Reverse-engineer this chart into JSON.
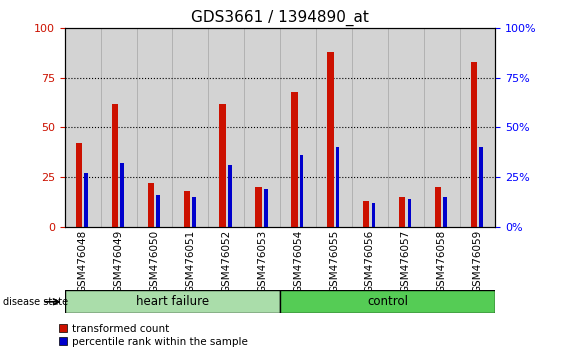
{
  "title": "GDS3661 / 1394890_at",
  "samples": [
    "GSM476048",
    "GSM476049",
    "GSM476050",
    "GSM476051",
    "GSM476052",
    "GSM476053",
    "GSM476054",
    "GSM476055",
    "GSM476056",
    "GSM476057",
    "GSM476058",
    "GSM476059"
  ],
  "red_values": [
    42,
    62,
    22,
    18,
    62,
    20,
    68,
    88,
    13,
    15,
    20,
    83
  ],
  "blue_values": [
    27,
    32,
    16,
    15,
    31,
    19,
    36,
    40,
    12,
    14,
    15,
    40
  ],
  "heart_failure_count": 6,
  "control_count": 6,
  "red_color": "#cc1100",
  "blue_color": "#0000cc",
  "bar_bg_color": "#d3d3d3",
  "hf_bg_color": "#aaddaa",
  "ctrl_bg_color": "#55cc55",
  "label_red": "transformed count",
  "label_blue": "percentile rank within the sample",
  "disease_state_label": "disease state",
  "hf_label": "heart failure",
  "ctrl_label": "control",
  "ylim": [
    0,
    100
  ],
  "yticks": [
    0,
    25,
    50,
    75,
    100
  ],
  "red_bar_width": 0.18,
  "blue_bar_width": 0.1,
  "title_fontsize": 11,
  "tick_fontsize": 7.5,
  "bg_color": "#ffffff"
}
